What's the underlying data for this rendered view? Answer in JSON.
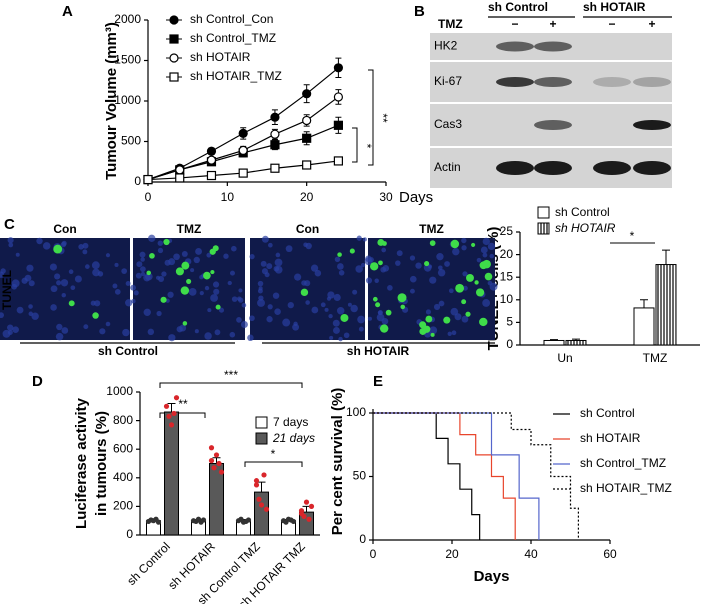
{
  "chart_data": [
    {
      "type": "line",
      "panel": "A",
      "ylabel": "Tumour Volume (mm³)",
      "xlabel": "Days",
      "x": [
        0,
        4,
        8,
        12,
        16,
        20,
        24
      ],
      "xlim": [
        0,
        30
      ],
      "xticks": [
        0,
        10,
        20,
        30
      ],
      "ylim": [
        0,
        2000
      ],
      "yticks": [
        0,
        500,
        1000,
        1500,
        2000
      ],
      "series": [
        {
          "name": "sh Control_Con",
          "color": "#000000",
          "marker": "filled-circle",
          "values": [
            30,
            170,
            380,
            600,
            800,
            1090,
            1410
          ],
          "errors": [
            10,
            20,
            40,
            70,
            90,
            110,
            120
          ]
        },
        {
          "name": "sh Control_TMZ",
          "color": "#000000",
          "marker": "filled-square",
          "values": [
            30,
            150,
            250,
            360,
            460,
            540,
            700
          ],
          "errors": [
            10,
            20,
            40,
            50,
            60,
            80,
            100
          ]
        },
        {
          "name": "sh HOTAIR",
          "color": "#000000",
          "marker": "open-circle",
          "values": [
            30,
            150,
            270,
            390,
            590,
            760,
            1050
          ],
          "errors": [
            10,
            20,
            30,
            50,
            60,
            70,
            90
          ]
        },
        {
          "name": "sh HOTAIR_TMZ",
          "color": "#000000",
          "marker": "open-square",
          "values": [
            30,
            50,
            80,
            110,
            170,
            210,
            260
          ],
          "errors": [
            5,
            10,
            10,
            15,
            20,
            25,
            30
          ]
        }
      ],
      "annotations": [
        "**",
        "*"
      ]
    },
    {
      "type": "bar",
      "ylabel": "TUNEL+ cells (%)",
      "categories": [
        "Un",
        "TMZ"
      ],
      "ylim": [
        0,
        25
      ],
      "yticks": [
        0,
        5,
        10,
        15,
        20,
        25
      ],
      "series": [
        {
          "name": "sh Control",
          "color": "#ffffff",
          "values": [
            1,
            8.2
          ],
          "errors": [
            0.2,
            1.8
          ]
        },
        {
          "name": "sh HOTAIR",
          "color": "#ffffff",
          "pattern": "vertical-stripes",
          "values": [
            1,
            17.8
          ],
          "errors": [
            0.3,
            3.2
          ]
        }
      ],
      "annotations": [
        "*"
      ]
    },
    {
      "type": "bar",
      "panel": "D",
      "ylabel": [
        "Luciferase activity",
        "in tumours (%)"
      ],
      "categories": [
        "sh Control",
        "sh HOTAIR",
        "sh Control TMZ",
        "sh HOTAIR TMZ"
      ],
      "ylim": [
        0,
        1000
      ],
      "yticks": [
        0,
        200,
        400,
        600,
        800,
        1000
      ],
      "series": [
        {
          "name": "7 days",
          "color": "#ffffff",
          "values": [
            100,
            100,
            100,
            100
          ],
          "errors": [
            5,
            8,
            8,
            8
          ],
          "points": [
            [
              95,
              105,
              100,
              110,
              90
            ],
            [
              100,
              95,
              110,
              90,
              105
            ],
            [
              100,
              110,
              90,
              95,
              105
            ],
            [
              100,
              90,
              110,
              105,
              95
            ]
          ]
        },
        {
          "name": "21 days",
          "color": "#595959",
          "values": [
            860,
            500,
            300,
            160
          ],
          "errors": [
            60,
            40,
            70,
            40
          ],
          "points": [
            [
              900,
              830,
              770,
              850,
              960
            ],
            [
              520,
              470,
              560,
              500,
              440,
              610
            ],
            [
              350,
              250,
              210,
              420,
              180,
              380
            ],
            [
              170,
              130,
              230,
              110,
              200,
              150
            ]
          ]
        }
      ],
      "annotations": [
        "**",
        "***",
        "*"
      ]
    },
    {
      "type": "step",
      "panel": "E",
      "ylabel": "Per cent survival (%)",
      "xlabel": "Days",
      "xlim": [
        0,
        60
      ],
      "xticks": [
        0,
        20,
        40,
        60
      ],
      "ylim": [
        0,
        100
      ],
      "yticks": [
        0,
        50,
        100
      ],
      "series": [
        {
          "name": "sh Control",
          "color": "#000000",
          "dash": "solid",
          "x": [
            0,
            16,
            19,
            22,
            25,
            27
          ],
          "values": [
            100,
            80,
            60,
            40,
            20,
            0
          ]
        },
        {
          "name": "sh HOTAIR",
          "color": "#e8452c",
          "dash": "solid",
          "x": [
            0,
            22,
            26,
            30,
            33,
            36
          ],
          "values": [
            100,
            83,
            67,
            50,
            33,
            0
          ]
        },
        {
          "name": "sh Control_TMZ",
          "color": "#5566cc",
          "dash": "solid",
          "x": [
            0,
            30,
            37,
            42
          ],
          "values": [
            100,
            67,
            33,
            0
          ]
        },
        {
          "name": "sh HOTAIR_TMZ",
          "color": "#000000",
          "dash": "dotted",
          "x": [
            0,
            35,
            40,
            45,
            50,
            52
          ],
          "values": [
            100,
            87,
            75,
            50,
            25,
            0
          ]
        }
      ]
    }
  ],
  "blot": {
    "panel": "B",
    "groups": [
      "sh Control",
      "sh HOTAIR"
    ],
    "treatment_label": "TMZ",
    "lanes": [
      "−",
      "+",
      "−",
      "+"
    ],
    "rows": [
      "HK2",
      "Ki-67",
      "Cas3",
      "Actin"
    ]
  },
  "images": {
    "panel": "C",
    "stain": "TUNEL",
    "columns": [
      "Con",
      "TMZ",
      "Con",
      "TMZ"
    ],
    "groups": [
      "sh Control",
      "sh HOTAIR"
    ]
  }
}
